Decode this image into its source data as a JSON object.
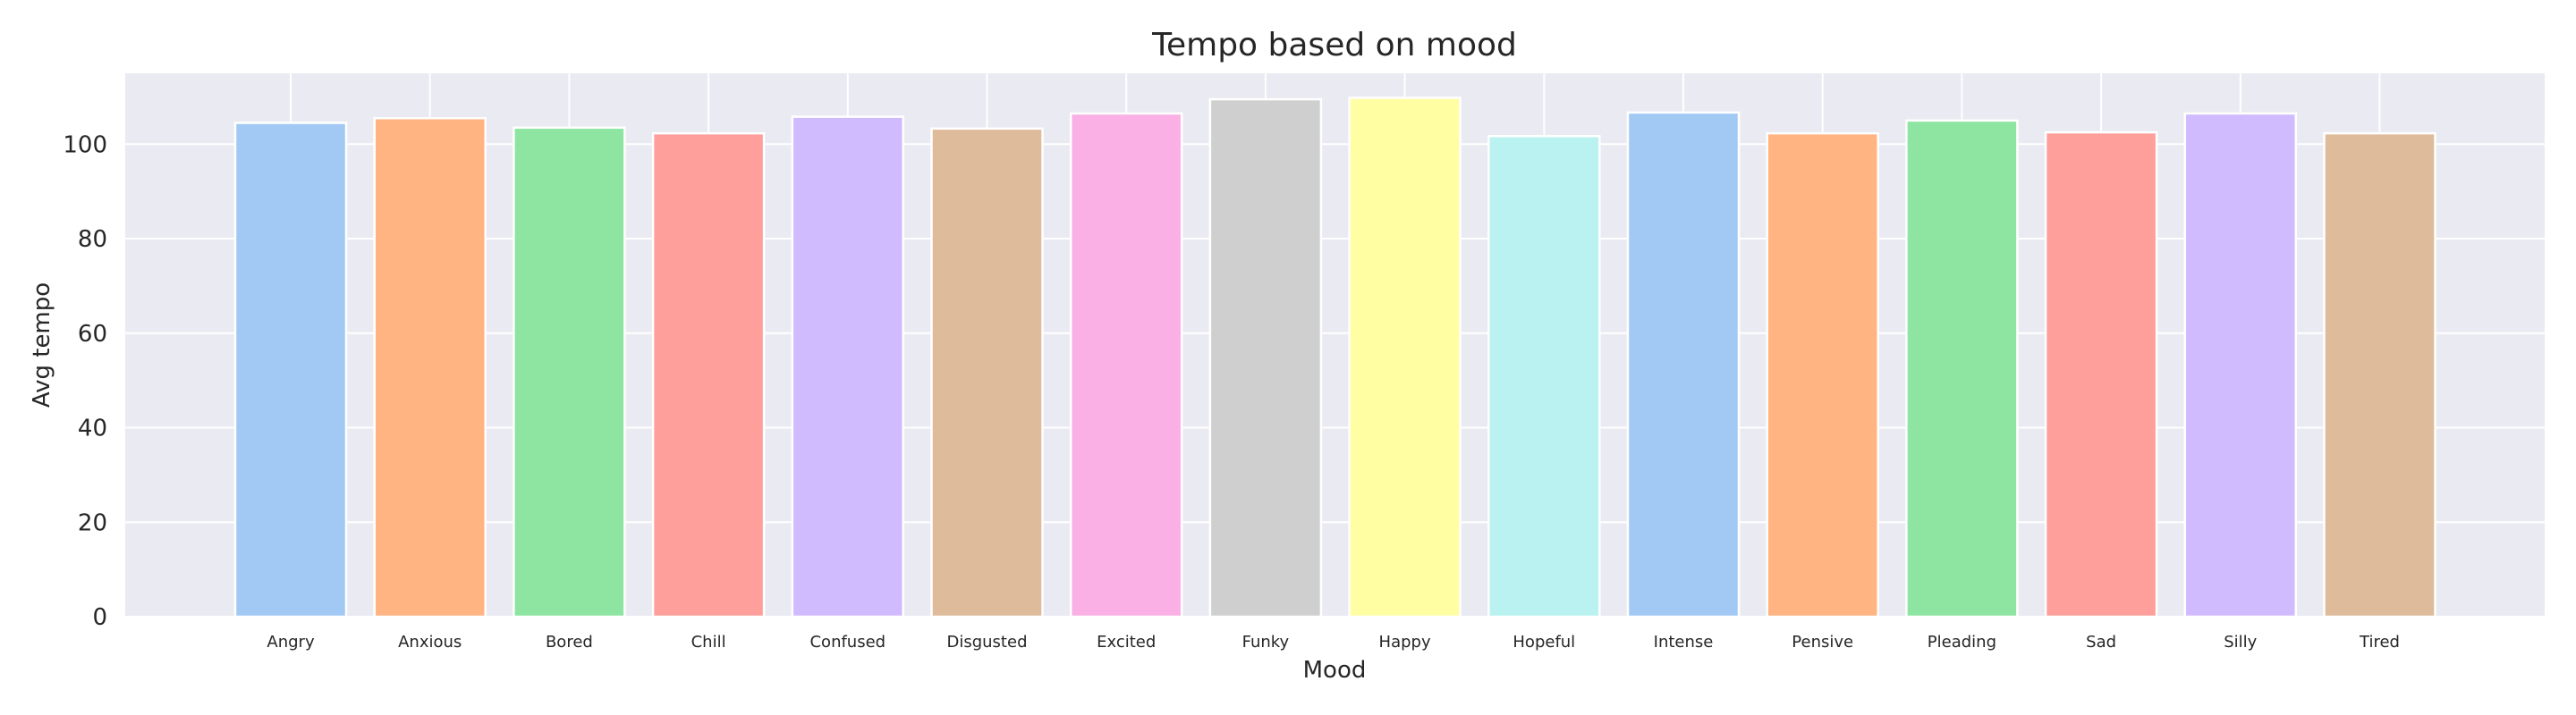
{
  "chart_data": {
    "type": "bar",
    "title": "Tempo based on mood",
    "xlabel": "Mood",
    "ylabel": "Avg tempo",
    "ylim": [
      0,
      115
    ],
    "yticks": [
      0,
      20,
      40,
      60,
      80,
      100
    ],
    "grid": true,
    "categories": [
      "Angry",
      "Anxious",
      "Bored",
      "Chill",
      "Confused",
      "Disgusted",
      "Excited",
      "Funky",
      "Happy",
      "Hopeful",
      "Intense",
      "Pensive",
      "Pleading",
      "Sad",
      "Silly",
      "Tired"
    ],
    "values": [
      104.5,
      105.5,
      103.5,
      102.3,
      105.8,
      103.3,
      106.5,
      109.5,
      109.8,
      101.7,
      106.7,
      102.3,
      105.0,
      102.5,
      106.5,
      102.3
    ],
    "colors": [
      "#a1c9f4",
      "#ffb482",
      "#8de5a1",
      "#ff9f9b",
      "#d0bbff",
      "#debb9b",
      "#fab0e4",
      "#cfcfcf",
      "#fffea3",
      "#b9f2f0",
      "#a1c9f4",
      "#ffb482",
      "#8de5a1",
      "#ff9f9b",
      "#d0bbff",
      "#debb9b"
    ],
    "plot_background": "#eaeaf2",
    "grid_color": "#ffffff"
  }
}
